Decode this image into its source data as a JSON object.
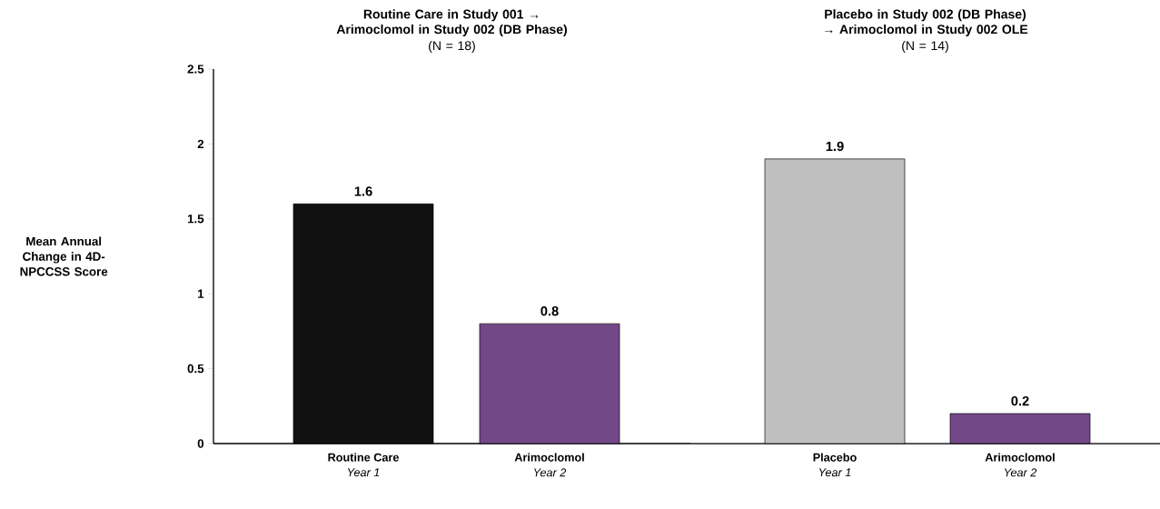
{
  "chart_data": [
    {
      "type": "bar",
      "title": "Routine Care in Study 001 → Arimoclomol in Study 002 (DB Phase)",
      "subtitle": "(N = 18)",
      "ylabel": "Mean Annual Change in 4D-NPCCSS Score",
      "categories": [
        "Routine Care",
        "Arimoclomol"
      ],
      "values": [
        1.6,
        0.8
      ],
      "colors": [
        "#111111",
        "#734888"
      ],
      "ylim": [
        0,
        2.5
      ],
      "yticks": [
        0,
        0.5,
        1,
        1.5,
        2,
        2.5
      ],
      "data_labels": true,
      "annotations": [
        "Year 1",
        "Year 2"
      ]
    },
    {
      "type": "bar",
      "title": "Placebo in Study 002 (DB Phase) → Arimoclomol in Study 002 OLE",
      "subtitle": "(N = 14)",
      "categories": [
        "Placebo",
        "Arimoclomol"
      ],
      "values": [
        1.9,
        0.2
      ],
      "colors": [
        "#bfbfbf",
        "#734888"
      ],
      "ylim": [
        0,
        2.5
      ],
      "yticks": [
        0,
        0.5,
        1,
        1.5,
        2,
        2.5
      ],
      "tick_labels": "x",
      "data_labels": true,
      "annotations": [
        "Year 1",
        "Year 2"
      ]
    }
  ]
}
